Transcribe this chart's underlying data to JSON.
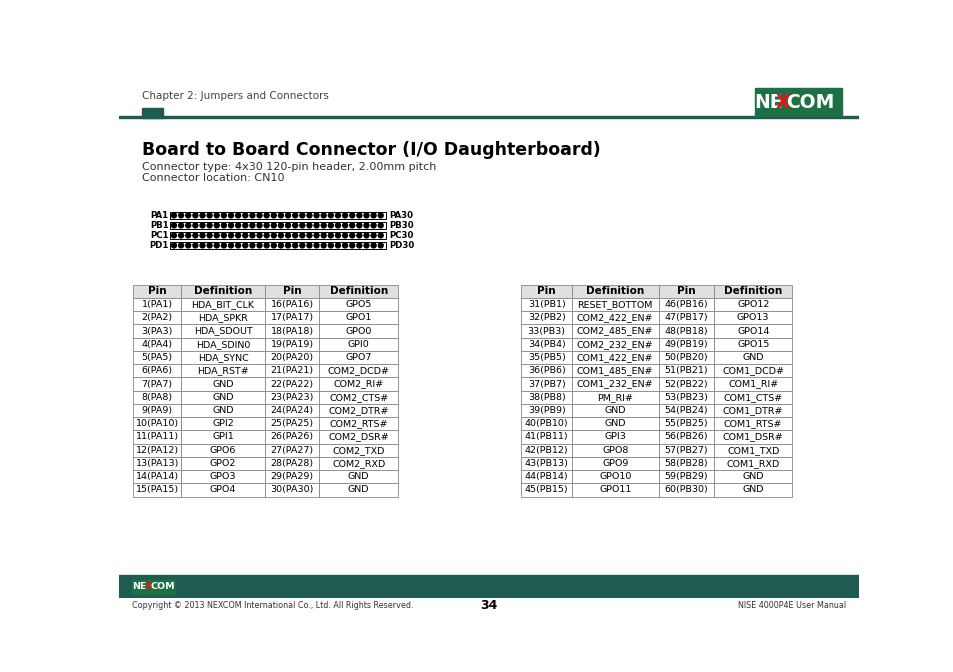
{
  "title": "Board to Board Connector (I/O Daughterboard)",
  "chapter": "Chapter 2: Jumpers and Connectors",
  "subtitle1": "Connector type: 4x30 120-pin header, 2.00mm pitch",
  "subtitle2": "Connector location: CN10",
  "footer_left": "Copyright © 2013 NEXCOM International Co., Ltd. All Rights Reserved.",
  "footer_center": "34",
  "footer_right": "NISE 4000P4E User Manual",
  "header_color": "#1e5c52",
  "nexcom_green": "#1d7044",
  "table_header_bg": "#f0f0f0",
  "connector_rows": [
    "PA1",
    "PB1",
    "PC1",
    "PD1"
  ],
  "connector_right": [
    "PA30",
    "PB30",
    "PC30",
    "PD30"
  ],
  "left_table": [
    [
      "1(PA1)",
      "HDA_BIT_CLK",
      "16(PA16)",
      "GPO5"
    ],
    [
      "2(PA2)",
      "HDA_SPKR",
      "17(PA17)",
      "GPO1"
    ],
    [
      "3(PA3)",
      "HDA_SDOUT",
      "18(PA18)",
      "GPO0"
    ],
    [
      "4(PA4)",
      "HDA_SDIN0",
      "19(PA19)",
      "GPI0"
    ],
    [
      "5(PA5)",
      "HDA_SYNC",
      "20(PA20)",
      "GPO7"
    ],
    [
      "6(PA6)",
      "HDA_RST#",
      "21(PA21)",
      "COM2_DCD#"
    ],
    [
      "7(PA7)",
      "GND",
      "22(PA22)",
      "COM2_RI#"
    ],
    [
      "8(PA8)",
      "GND",
      "23(PA23)",
      "COM2_CTS#"
    ],
    [
      "9(PA9)",
      "GND",
      "24(PA24)",
      "COM2_DTR#"
    ],
    [
      "10(PA10)",
      "GPI2",
      "25(PA25)",
      "COM2_RTS#"
    ],
    [
      "11(PA11)",
      "GPI1",
      "26(PA26)",
      "COM2_DSR#"
    ],
    [
      "12(PA12)",
      "GPO6",
      "27(PA27)",
      "COM2_TXD"
    ],
    [
      "13(PA13)",
      "GPO2",
      "28(PA28)",
      "COM2_RXD"
    ],
    [
      "14(PA14)",
      "GPO3",
      "29(PA29)",
      "GND"
    ],
    [
      "15(PA15)",
      "GPO4",
      "30(PA30)",
      "GND"
    ]
  ],
  "right_table": [
    [
      "31(PB1)",
      "RESET_BOTTOM",
      "46(PB16)",
      "GPO12"
    ],
    [
      "32(PB2)",
      "COM2_422_EN#",
      "47(PB17)",
      "GPO13"
    ],
    [
      "33(PB3)",
      "COM2_485_EN#",
      "48(PB18)",
      "GPO14"
    ],
    [
      "34(PB4)",
      "COM2_232_EN#",
      "49(PB19)",
      "GPO15"
    ],
    [
      "35(PB5)",
      "COM1_422_EN#",
      "50(PB20)",
      "GND"
    ],
    [
      "36(PB6)",
      "COM1_485_EN#",
      "51(PB21)",
      "COM1_DCD#"
    ],
    [
      "37(PB7)",
      "COM1_232_EN#",
      "52(PB22)",
      "COM1_RI#"
    ],
    [
      "38(PB8)",
      "PM_RI#",
      "53(PB23)",
      "COM1_CTS#"
    ],
    [
      "39(PB9)",
      "GND",
      "54(PB24)",
      "COM1_DTR#"
    ],
    [
      "40(PB10)",
      "GND",
      "55(PB25)",
      "COM1_RTS#"
    ],
    [
      "41(PB11)",
      "GPI3",
      "56(PB26)",
      "COM1_DSR#"
    ],
    [
      "42(PB12)",
      "GPO8",
      "57(PB27)",
      "COM1_TXD"
    ],
    [
      "43(PB13)",
      "GPO9",
      "58(PB28)",
      "COM1_RXD"
    ],
    [
      "44(PB14)",
      "GPO10",
      "59(PB29)",
      "GND"
    ],
    [
      "45(PB15)",
      "GPO11",
      "60(PB30)",
      "GND"
    ]
  ],
  "col_headers": [
    "Pin",
    "Definition",
    "Pin",
    "Definition"
  ]
}
